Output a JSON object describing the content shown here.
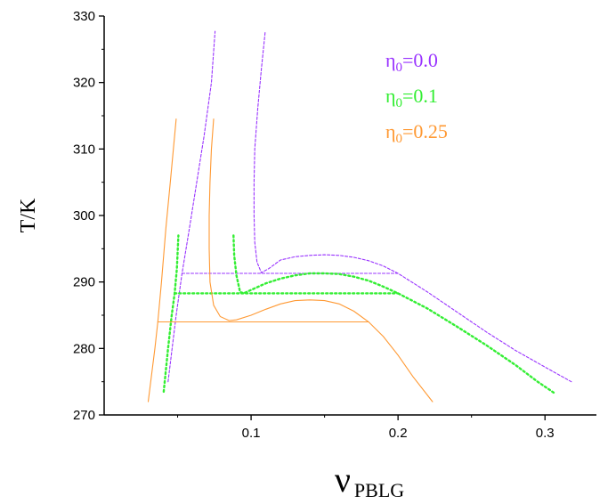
{
  "chart_data": {
    "type": "line",
    "title": "",
    "xlabel": {
      "main": "ν",
      "sub": "PBLG"
    },
    "ylabel": "T/K",
    "xlim": [
      0.0,
      0.335
    ],
    "ylim": [
      270,
      330
    ],
    "x_ticks": [
      {
        "value": 0.1,
        "label": "0.1"
      },
      {
        "value": 0.2,
        "label": "0.2"
      },
      {
        "value": 0.3,
        "label": "0.3"
      }
    ],
    "y_ticks": [
      {
        "value": 270,
        "label": "270"
      },
      {
        "value": 280,
        "label": "280"
      },
      {
        "value": 290,
        "label": "290"
      },
      {
        "value": 300,
        "label": "300"
      },
      {
        "value": 310,
        "label": "310"
      },
      {
        "value": 320,
        "label": "320"
      },
      {
        "value": 330,
        "label": "330"
      }
    ],
    "grid": false,
    "legend_position": "top-right",
    "series": [
      {
        "name": "η0=0.0",
        "legend": {
          "symbol": "η",
          "sub": "0",
          "text": "=0.0"
        },
        "color": "#9933ff",
        "dash": "3,2",
        "segments": [
          [
            [
              0.0435,
              275
            ],
            [
              0.049,
              285
            ],
            [
              0.053,
              291.3
            ],
            [
              0.058,
              298
            ],
            [
              0.063,
              305
            ],
            [
              0.068,
              312
            ],
            [
              0.073,
              320
            ],
            [
              0.0755,
              327.7
            ]
          ],
          [
            [
              0.1095,
              327.5
            ],
            [
              0.107,
              322
            ],
            [
              0.1045,
              316
            ],
            [
              0.1025,
              310
            ],
            [
              0.102,
              305
            ],
            [
              0.102,
              300
            ],
            [
              0.1025,
              296
            ],
            [
              0.104,
              293
            ],
            [
              0.107,
              291.4
            ],
            [
              0.112,
              292
            ],
            [
              0.12,
              293.3
            ],
            [
              0.13,
              293.8
            ],
            [
              0.14,
              294.0
            ],
            [
              0.15,
              294.1
            ],
            [
              0.16,
              294.0
            ],
            [
              0.17,
              293.7
            ],
            [
              0.18,
              293.2
            ],
            [
              0.19,
              292.4
            ],
            [
              0.2,
              291.3
            ],
            [
              0.22,
              288.5
            ],
            [
              0.24,
              285.5
            ],
            [
              0.26,
              282.5
            ],
            [
              0.28,
              279.7
            ],
            [
              0.3,
              277.2
            ],
            [
              0.318,
              275
            ]
          ],
          [
            [
              0.053,
              291.3
            ],
            [
              0.2,
              291.3
            ]
          ]
        ]
      },
      {
        "name": "η0=0.1",
        "legend": {
          "symbol": "η",
          "sub": "0",
          "text": "=0.1"
        },
        "color": "#33ee33",
        "dash": "2,3",
        "segments": [
          [
            [
              0.0405,
              273.5
            ],
            [
              0.0435,
              280
            ],
            [
              0.046,
              285
            ],
            [
              0.048,
              288.3
            ],
            [
              0.0495,
              292
            ],
            [
              0.0505,
              297
            ]
          ],
          [
            [
              0.088,
              297
            ],
            [
              0.0885,
              294
            ],
            [
              0.09,
              291
            ],
            [
              0.0925,
              288.5
            ],
            [
              0.095,
              288.3
            ],
            [
              0.1,
              288.8
            ],
            [
              0.11,
              289.8
            ],
            [
              0.12,
              290.5
            ],
            [
              0.13,
              291.0
            ],
            [
              0.14,
              291.3
            ],
            [
              0.15,
              291.3
            ],
            [
              0.16,
              291.2
            ],
            [
              0.17,
              290.8
            ],
            [
              0.18,
              290.2
            ],
            [
              0.19,
              289.3
            ],
            [
              0.2,
              288.3
            ],
            [
              0.22,
              286.0
            ],
            [
              0.24,
              283.3
            ],
            [
              0.26,
              280.5
            ],
            [
              0.28,
              277.5
            ],
            [
              0.295,
              275
            ],
            [
              0.307,
              273.2
            ]
          ],
          [
            [
              0.048,
              288.3
            ],
            [
              0.2,
              288.3
            ]
          ]
        ]
      },
      {
        "name": "η0=0.25",
        "legend": {
          "symbol": "η",
          "sub": "0",
          "text": "=0.25"
        },
        "color": "#ff9933",
        "dash": "",
        "segments": [
          [
            [
              0.03,
              272
            ],
            [
              0.0345,
              280
            ],
            [
              0.0365,
              284
            ],
            [
              0.039,
              290
            ],
            [
              0.042,
              298
            ],
            [
              0.045,
              305
            ],
            [
              0.049,
              314.5
            ]
          ],
          [
            [
              0.0745,
              314.5
            ],
            [
              0.073,
              310
            ],
            [
              0.072,
              305
            ],
            [
              0.0715,
              300
            ],
            [
              0.0715,
              295
            ],
            [
              0.072,
              290
            ],
            [
              0.0745,
              286.5
            ],
            [
              0.079,
              284.8
            ],
            [
              0.085,
              284.2
            ],
            [
              0.09,
              284.3
            ],
            [
              0.1,
              285.0
            ],
            [
              0.11,
              285.9
            ],
            [
              0.12,
              286.7
            ],
            [
              0.13,
              287.2
            ],
            [
              0.14,
              287.3
            ],
            [
              0.15,
              287.2
            ],
            [
              0.16,
              286.7
            ],
            [
              0.17,
              285.6
            ],
            [
              0.18,
              284.0
            ],
            [
              0.19,
              281.8
            ],
            [
              0.2,
              279.0
            ],
            [
              0.21,
              275.8
            ],
            [
              0.2235,
              272
            ]
          ],
          [
            [
              0.0365,
              284
            ],
            [
              0.18,
              284
            ]
          ]
        ]
      }
    ]
  }
}
